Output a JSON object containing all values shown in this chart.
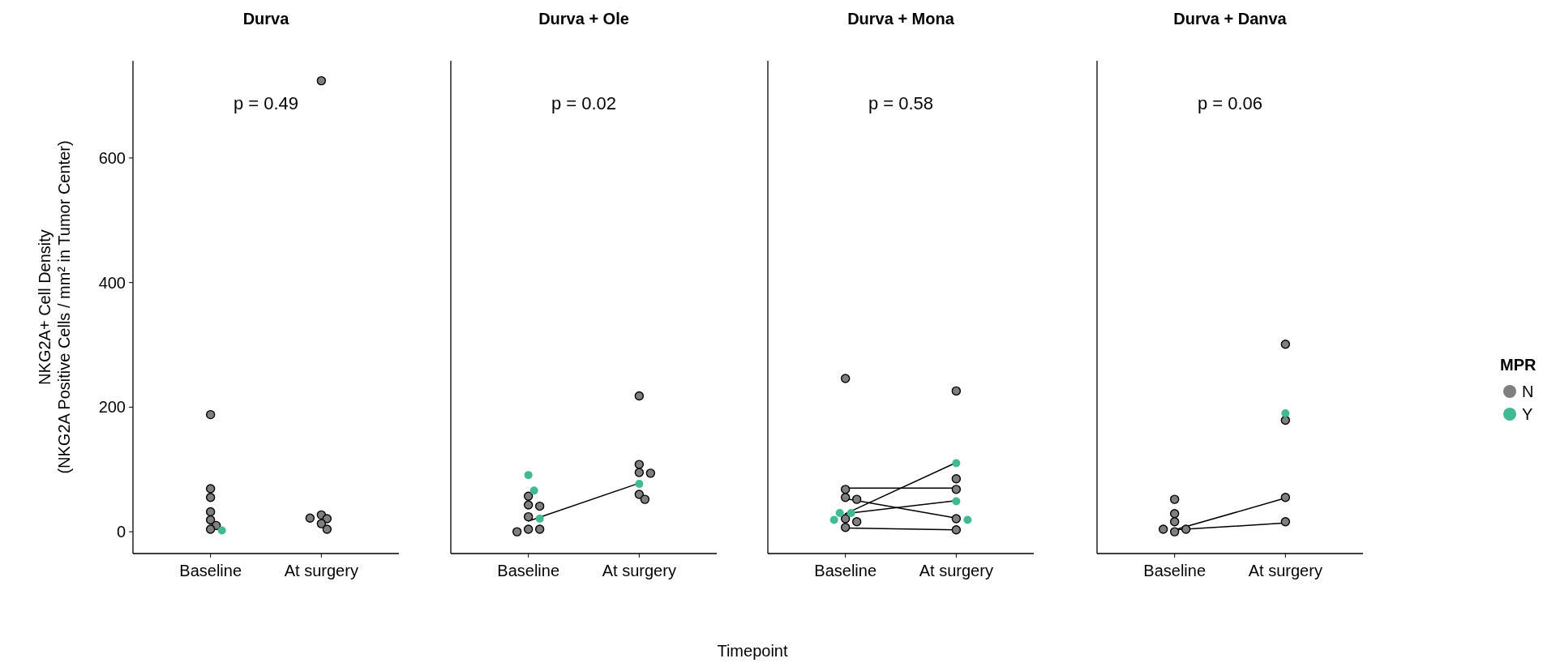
{
  "chart_data": [
    {
      "type": "scatter",
      "title": "Durva",
      "ylabel": "NKG2A+ Cell Density\n(NKG2A Positive Cells / mm² in Tumor Center)",
      "categories": [
        "Baseline",
        "At surgery"
      ],
      "ylim": [
        -35,
        756
      ],
      "yticks": [
        0,
        200,
        400,
        600
      ],
      "marker": "circle",
      "annotations": [
        "p = 0.49"
      ],
      "series": [
        {
          "color": "#7f7f7f",
          "x": [
            "Baseline",
            "Baseline",
            "Baseline",
            "Baseline",
            "Baseline",
            "Baseline",
            "Baseline",
            "At surgery",
            "At surgery",
            "At surgery",
            "At surgery",
            "At surgery",
            "At surgery"
          ],
          "values": [
            188,
            69,
            55,
            32,
            19,
            10,
            4,
            27,
            21,
            22,
            13,
            4,
            724
          ]
        },
        {
          "color": "#42b995",
          "x": [
            "Baseline"
          ],
          "values": [
            2
          ]
        }
      ]
    },
    {
      "type": "scatter",
      "title": "Durva + Ole",
      "xlabel": "Timepoint",
      "categories": [
        "Baseline",
        "At surgery"
      ],
      "ylim": [
        -35,
        756
      ],
      "tick_labels": "x",
      "marker": "circle",
      "annotations": [
        "p = 0.02"
      ],
      "series": [
        {
          "type": "line",
          "marker": "none",
          "color": "#000000",
          "x": [
            "Baseline",
            "At surgery"
          ],
          "values": [
            17,
            78
          ]
        },
        {
          "color": "#7f7f7f",
          "x": [
            "Baseline",
            "Baseline",
            "Baseline",
            "Baseline",
            "Baseline",
            "Baseline",
            "Baseline",
            "At surgery",
            "At surgery",
            "At surgery",
            "At surgery",
            "At surgery",
            "At surgery"
          ],
          "values": [
            57,
            43,
            41,
            24,
            4,
            4,
            0,
            218,
            108,
            95,
            94,
            60,
            52
          ]
        },
        {
          "color": "#42b995",
          "x": [
            "Baseline",
            "Baseline",
            "Baseline",
            "At surgery"
          ],
          "values": [
            91,
            66,
            21,
            77
          ]
        }
      ]
    },
    {
      "type": "scatter",
      "title": "Durva + Mona",
      "categories": [
        "Baseline",
        "At surgery"
      ],
      "ylim": [
        -35,
        756
      ],
      "tick_labels": "x",
      "marker": "circle",
      "annotations": [
        "p = 0.58"
      ],
      "series": [
        {
          "type": "line",
          "marker": "none",
          "color": "#000000",
          "x": [
            "Baseline",
            "At surgery"
          ],
          "values": [
            70,
            70
          ]
        },
        {
          "type": "line",
          "marker": "none",
          "color": "#000000",
          "x": [
            "Baseline",
            "At surgery"
          ],
          "values": [
            29,
            111
          ]
        },
        {
          "type": "line",
          "marker": "none",
          "color": "#000000",
          "x": [
            "Baseline",
            "At surgery"
          ],
          "values": [
            29,
            50
          ]
        },
        {
          "type": "line",
          "marker": "none",
          "color": "#000000",
          "x": [
            "Baseline",
            "At surgery"
          ],
          "values": [
            53,
            22
          ]
        },
        {
          "type": "line",
          "marker": "none",
          "color": "#000000",
          "x": [
            "Baseline",
            "At surgery"
          ],
          "values": [
            6,
            3
          ]
        },
        {
          "color": "#7f7f7f",
          "x": [
            "Baseline",
            "Baseline",
            "Baseline",
            "Baseline",
            "Baseline",
            "Baseline",
            "Baseline",
            "At surgery",
            "At surgery",
            "At surgery",
            "At surgery",
            "At surgery"
          ],
          "values": [
            246,
            68,
            55,
            52,
            21,
            16,
            7,
            226,
            85,
            68,
            21,
            3
          ]
        },
        {
          "color": "#42b995",
          "x": [
            "Baseline",
            "Baseline",
            "Baseline",
            "At surgery",
            "At surgery",
            "At surgery"
          ],
          "values": [
            30,
            30,
            19,
            110,
            49,
            19
          ]
        }
      ]
    },
    {
      "type": "scatter",
      "title": "Durva + Danva",
      "categories": [
        "Baseline",
        "At surgery"
      ],
      "ylim": [
        -35,
        756
      ],
      "tick_labels": "x",
      "marker": "circle",
      "legend": "right",
      "legend_title": "MPR",
      "annotations": [
        "p = 0.06"
      ],
      "series": [
        {
          "type": "line",
          "marker": "none",
          "color": "#000000",
          "x": [
            "Baseline",
            "At surgery"
          ],
          "values": [
            3,
            54
          ]
        },
        {
          "type": "line",
          "marker": "none",
          "color": "#000000",
          "x": [
            "Baseline",
            "At surgery"
          ],
          "values": [
            3,
            14
          ]
        },
        {
          "name": "N",
          "color": "#7f7f7f",
          "x": [
            "Baseline",
            "Baseline",
            "Baseline",
            "Baseline",
            "Baseline",
            "Baseline",
            "At surgery",
            "At surgery",
            "At surgery",
            "At surgery"
          ],
          "values": [
            52,
            29,
            16,
            0,
            4,
            4,
            301,
            179,
            55,
            16
          ]
        },
        {
          "name": "Y",
          "color": "#42b995",
          "x": [
            "At surgery"
          ],
          "values": [
            190
          ]
        }
      ]
    }
  ]
}
